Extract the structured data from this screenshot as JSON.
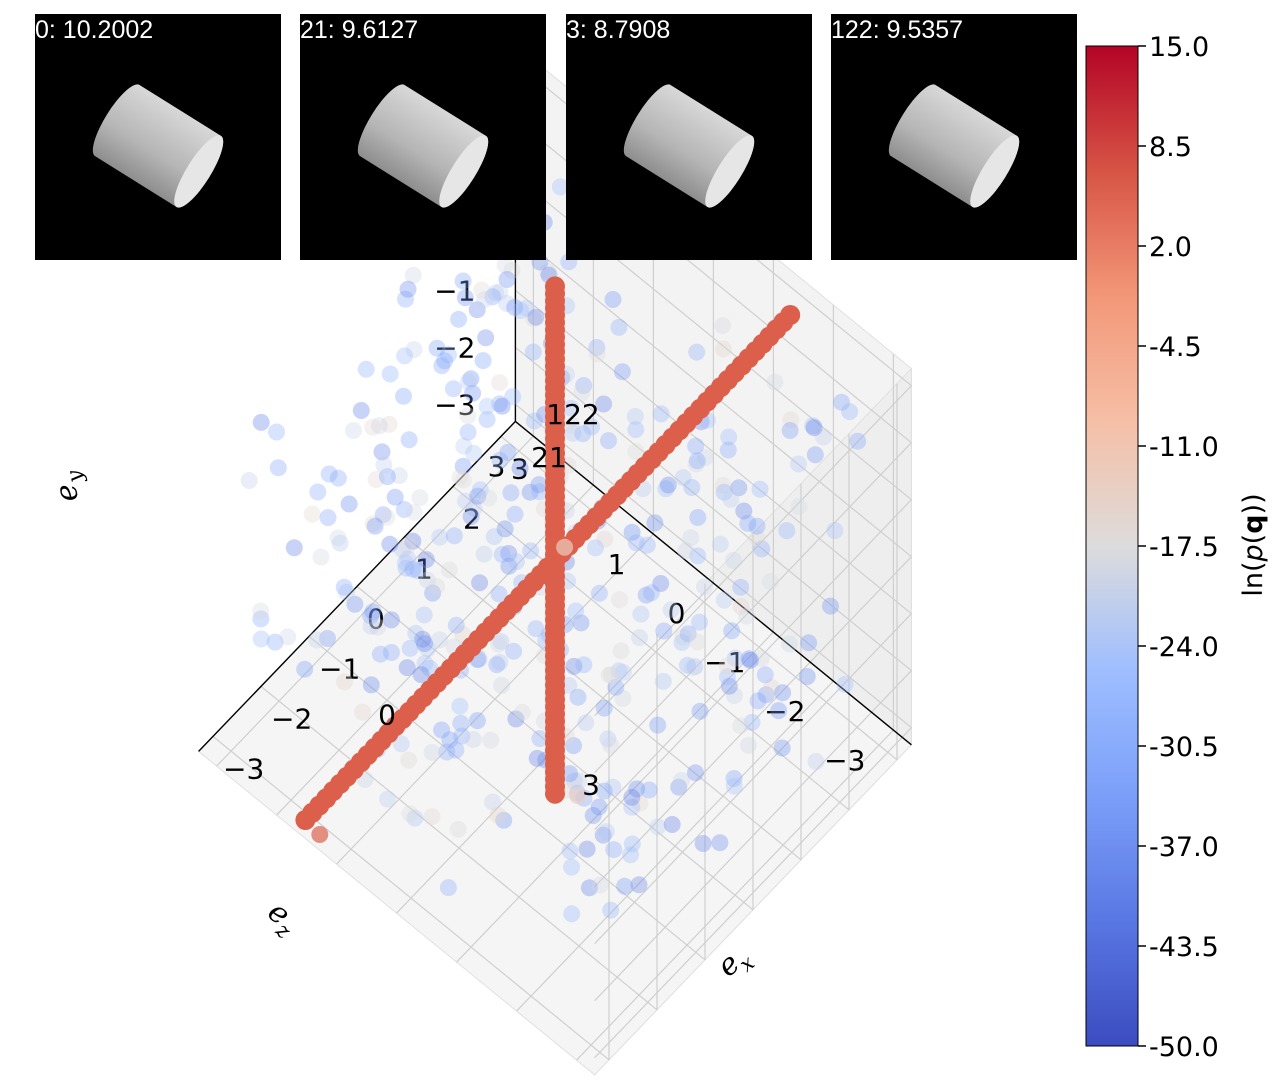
{
  "chart_data": {
    "type": "scatter",
    "subtype": "3d-scatter",
    "xlabel": "e_x",
    "ylabel": "e_y",
    "zlabel": "e_z",
    "xlim": [
      -3.3,
      3.3
    ],
    "ylim": [
      -3.3,
      3.3
    ],
    "zlim": [
      -3.3,
      3.3
    ],
    "x_ticks": [
      "-3",
      "-2",
      "-1",
      "0",
      "1",
      "2",
      "3"
    ],
    "y_ticks": [
      "3",
      "2",
      "1",
      "0",
      "-1",
      "-2",
      "-3"
    ],
    "z_ticks": [
      "-3",
      "-2",
      "-1",
      "0",
      "1",
      "2",
      "3"
    ],
    "grid": true,
    "colormap": "coolwarm",
    "colorbar": {
      "label": "ln(p(q))",
      "ticks": [
        "15.0",
        "8.5",
        "2.0",
        "-4.5",
        "-11.0",
        "-17.5",
        "-24.0",
        "-30.5",
        "-37.0",
        "-43.5",
        "-50.0"
      ],
      "range": [
        -50.0,
        15.0
      ]
    },
    "high_density_lines": [
      {
        "label": "0",
        "direction": "e_x",
        "log_prob": 10.2002
      },
      {
        "label": "21",
        "direction": "e_y",
        "log_prob": 9.6127
      },
      {
        "label": "3",
        "direction": "e_y",
        "log_prob": 8.7908
      },
      {
        "label": "122",
        "direction": "e_x",
        "log_prob": 9.5357
      }
    ],
    "background_points": {
      "count": 420,
      "log_prob_range": [
        -40,
        -15
      ],
      "distribution": "uniform in cube"
    },
    "annotations": [
      "21",
      "122",
      "0",
      "3"
    ]
  },
  "thumbnails": [
    {
      "caption": "0: 10.2002"
    },
    {
      "caption": "21: 9.6127"
    },
    {
      "caption": "3: 8.7908"
    },
    {
      "caption": "122: 9.5357"
    }
  ],
  "colors": {
    "cmap_low": "#3b4cc0",
    "cmap_mid": "#dddcdc",
    "cmap_high": "#b40426",
    "line_color": "#dc5f4b",
    "background": "#ffffff",
    "pane": "#f2f2f2",
    "grid": "#cccccc"
  }
}
